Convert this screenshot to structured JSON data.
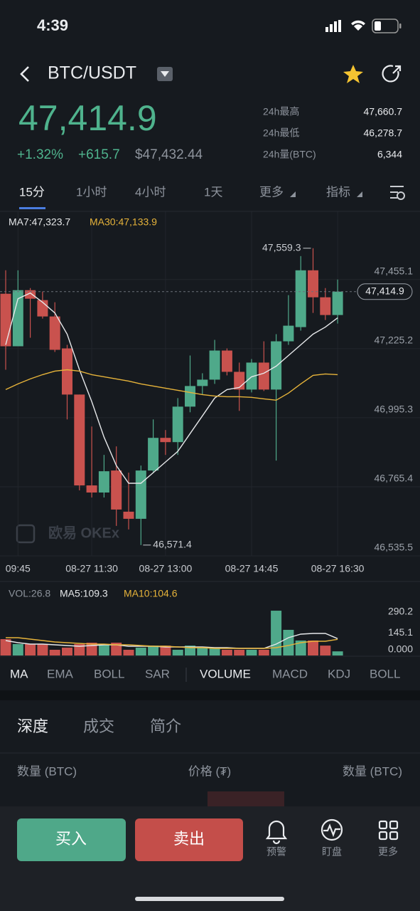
{
  "status_bar": {
    "time": "4:39"
  },
  "header": {
    "pair": "BTC/USDT"
  },
  "price": {
    "last": "47,414.9",
    "change_pct": "+1.32%",
    "change_abs": "+615.7",
    "usd": "$47,432.44"
  },
  "stats": [
    {
      "label": "24h最高",
      "value": "47,660.7"
    },
    {
      "label": "24h最低",
      "value": "46,278.7"
    },
    {
      "label": "24h量(BTC)",
      "value": "6,344"
    }
  ],
  "tabs": [
    "15分",
    "1小时",
    "4小时",
    "1天",
    "更多",
    "指标"
  ],
  "chart_data": {
    "type": "candlestick",
    "categories": [
      null,
      "09:45",
      null,
      null,
      null,
      null,
      null,
      "08-27 11:30",
      null,
      null,
      null,
      null,
      null,
      "08-27 13:00",
      null,
      null,
      null,
      null,
      null,
      null,
      "08-27 14:45",
      null,
      null,
      null,
      null,
      null,
      null,
      "08-27 16:30"
    ],
    "open": [
      47407.8,
      47233.0,
      47419.7,
      47386.6,
      47332.2,
      47225.9,
      47072.3,
      46769.9,
      46746.3,
      46819.5,
      46682.5,
      46658.8,
      46819.5,
      46928.2,
      46914.0,
      47032.1,
      47100.7,
      47121.9,
      47218.8,
      47147.9,
      47088.9,
      47178.7,
      47088.9,
      47249.5,
      47296.8,
      47485.8,
      47396.0,
      47337.0
    ],
    "high": [
      47485.8,
      47485.8,
      47426.7,
      47414.9,
      47379.5,
      47237.7,
      47072.3,
      46966.0,
      46871.5,
      46899.8,
      46812.4,
      46836.0,
      46989.6,
      46954.2,
      47060.5,
      47202.3,
      47143.2,
      47254.3,
      47225.9,
      47178.7,
      47190.5,
      47249.5,
      47273.2,
      47403.1,
      47533.1,
      47559.3,
      47426.7,
      47455.1
    ],
    "low": [
      47155.0,
      47233.0,
      47261.4,
      47325.1,
      47214.1,
      46989.6,
      46753.3,
      46729.7,
      46729.7,
      46635.2,
      46623.4,
      46571.4,
      46812.4,
      46871.5,
      46871.5,
      47013.3,
      47072.3,
      47107.8,
      47136.1,
      47018.0,
      47079.4,
      47084.1,
      46852.6,
      47237.7,
      47285.0,
      47344.0,
      47320.4,
      47308.6
    ],
    "close": [
      47233.0,
      47419.7,
      47391.3,
      47332.2,
      47221.2,
      47072.3,
      46769.9,
      46746.3,
      46817.1,
      46689.6,
      46658.8,
      46819.5,
      46928.2,
      46914.0,
      47032.1,
      47100.7,
      47121.9,
      47218.8,
      47147.9,
      47088.9,
      47178.7,
      47088.9,
      47249.5,
      47301.5,
      47485.8,
      47396.0,
      47337.0,
      47414.9
    ],
    "up_color": "#4fa98a",
    "down_color": "#c9524e",
    "series": [
      {
        "name": "MA7:47,323.7",
        "color": "#e6e8ea",
        "values": [
          47237.7,
          47391.3,
          47410.2,
          47379.5,
          47344.0,
          47273.2,
          47155.0,
          47048.7,
          46930.6,
          46836.0,
          46777.0,
          46777.0,
          46812.4,
          46847.9,
          46883.3,
          46942.4,
          47001.4,
          47060.5,
          47088.9,
          47096.0,
          47131.4,
          47143.2,
          47166.8,
          47202.3,
          47237.7,
          47273.2,
          47296.8,
          47327.5
        ]
      },
      {
        "name": "MA30:47,133.9",
        "color": "#e6b33a",
        "values": [
          47088.9,
          47107.8,
          47124.3,
          47138.5,
          47150.3,
          47155.0,
          47150.3,
          47138.5,
          47131.4,
          47124.3,
          47117.2,
          47107.8,
          47100.7,
          47093.6,
          47086.5,
          47079.4,
          47072.3,
          47067.6,
          47065.2,
          47065.2,
          47062.9,
          47058.1,
          47053.4,
          47077.1,
          47107.8,
          47136.1,
          47140.8,
          47138.5
        ]
      }
    ],
    "ylim": [
      46535.5,
      47681.9
    ],
    "yticks": [
      {
        "value": 47455.1,
        "label": "47,455.1"
      },
      {
        "value": 47225.2,
        "label": "47,225.2"
      },
      {
        "value": 46995.3,
        "label": "46,995.3"
      },
      {
        "value": 46765.4,
        "label": "46,765.4"
      },
      {
        "value": 46535.5,
        "label": "46,535.5"
      }
    ],
    "annotations": [
      {
        "value": 47559.3,
        "label": "47,559.3"
      },
      {
        "value": 46571.4,
        "label": "46,571.4"
      }
    ],
    "last_price": {
      "value": 47414.9,
      "label": "47,414.9"
    },
    "watermark": "欧易 OKEx",
    "grid": true
  },
  "volume_chart": {
    "type": "bar",
    "legend": "VOL:26.8",
    "values": [
      106,
      74,
      74,
      74,
      37,
      51,
      74,
      83,
      74,
      83,
      37,
      51,
      64,
      64,
      37,
      64,
      51,
      51,
      37,
      37,
      37,
      37,
      290,
      166,
      97,
      97,
      64,
      26.8
    ],
    "series": [
      {
        "name": "MA5:109.3",
        "color": "#e6e8ea",
        "values": [
          96.7,
          82.9,
          73.7,
          73.7,
          69.1,
          64.5,
          59.9,
          64.5,
          69.1,
          69.1,
          59.9,
          59.9,
          59.9,
          55.3,
          55.3,
          55.3,
          55.3,
          50.7,
          50.7,
          46.1,
          46.1,
          46.1,
          73.7,
          115.2,
          138.2,
          142.8,
          142.8,
          109.3
        ]
      },
      {
        "name": "MA10:104.6",
        "color": "#e6b33a",
        "values": [
          115.2,
          115.2,
          106.0,
          96.7,
          87.5,
          82.9,
          78.3,
          73.7,
          73.7,
          69.1,
          69.1,
          64.5,
          59.9,
          59.9,
          55.3,
          50.7,
          50.7,
          46.1,
          46.1,
          46.1,
          46.1,
          46.1,
          50.7,
          64.5,
          82.9,
          92.1,
          92.1,
          104.6
        ]
      }
    ],
    "ylim": [
      0,
      290.2
    ],
    "yticks": [
      290.2,
      145.1,
      {
        "value": 0,
        "label": "0.000"
      }
    ]
  },
  "indicators": [
    "MA",
    "EMA",
    "BOLL",
    "SAR",
    "VOLUME",
    "MACD",
    "KDJ",
    "BOLL"
  ],
  "book_tabs": [
    "深度",
    "成交",
    "简介"
  ],
  "book_header": [
    "数量 (BTC)",
    "价格 (₮)",
    "数量 (BTC)"
  ],
  "bottom_bar": {
    "buy": "买入",
    "sell": "卖出",
    "alert": "预警",
    "watch": "盯盘",
    "more": "更多"
  }
}
